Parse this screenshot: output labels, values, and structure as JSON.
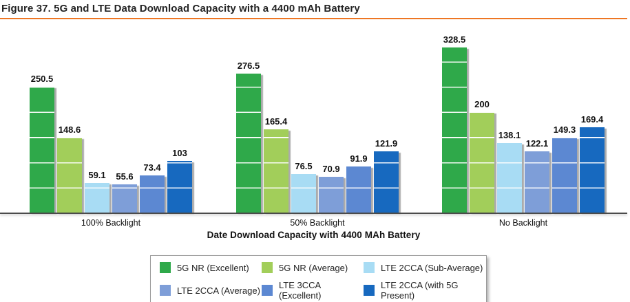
{
  "figure": {
    "title": "Figure 37. 5G and LTE Data Download Capacity with a 4400 mAh Battery",
    "accent_color": "#EE7623"
  },
  "chart_data": {
    "type": "bar",
    "categories": [
      "100% Backlight",
      "50% Backlight",
      "No Backlight"
    ],
    "series": [
      {
        "name": "5G NR (Excellent)",
        "color": "#2FA94A",
        "values": [
          250.5,
          276.5,
          328.5
        ]
      },
      {
        "name": "5G NR (Average)",
        "color": "#A2CE5A",
        "values": [
          148.6,
          165.4,
          200
        ]
      },
      {
        "name": "LTE 2CCA (Sub-Average)",
        "color": "#A8DCF4",
        "values": [
          59.1,
          76.5,
          138.1
        ]
      },
      {
        "name": "LTE 2CCA (Average)",
        "color": "#7E9ED8",
        "values": [
          55.6,
          70.9,
          122.1
        ]
      },
      {
        "name": "LTE 3CCA (Excellent)",
        "color": "#5C88D2",
        "values": [
          73.4,
          91.9,
          149.3
        ]
      },
      {
        "name": "LTE 2CCA (with 5G Present)",
        "color": "#1769BF",
        "values": [
          103,
          121.9,
          169.4
        ]
      }
    ],
    "xlabel": "Date Download Capacity with 4400 MAh Battery",
    "ylim": [
      0,
      340
    ],
    "gridline_interval": 50,
    "grid": "white horizontal lines over bars only",
    "legend_position": "bottom",
    "value_labels": "above bars, bold"
  }
}
